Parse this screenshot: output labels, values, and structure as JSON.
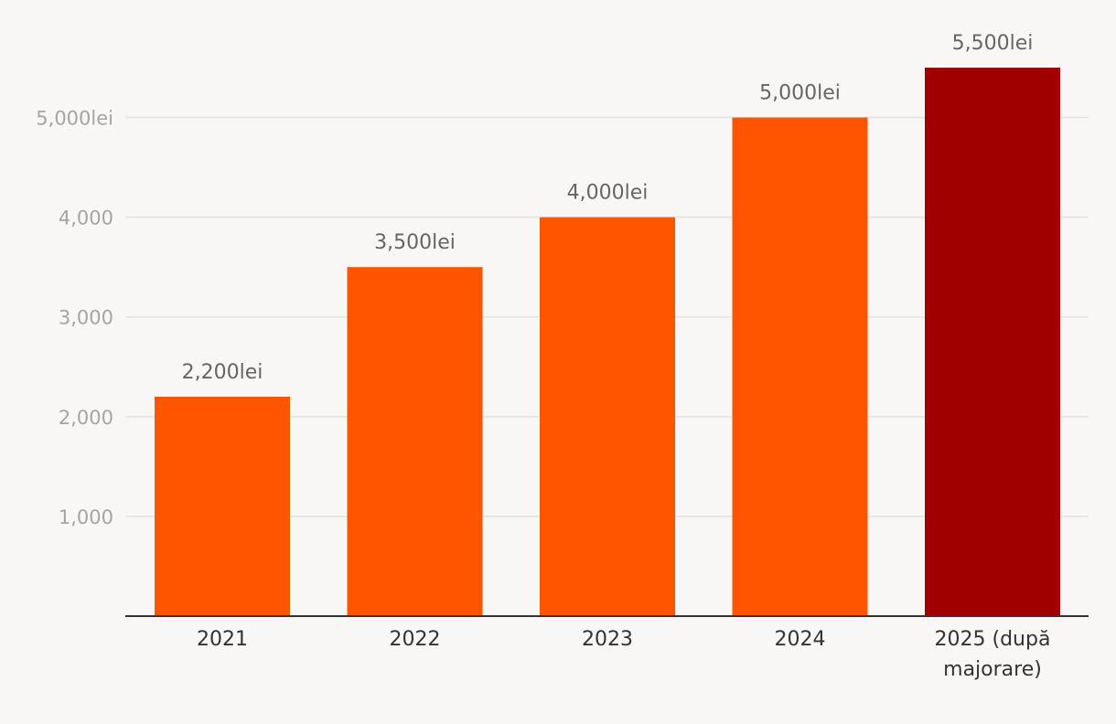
{
  "chart_data": {
    "type": "bar",
    "title": "",
    "xlabel": "",
    "ylabel": "",
    "ylim": [
      0,
      5500
    ],
    "yticks": [
      {
        "value": 1000,
        "label": "1,000"
      },
      {
        "value": 2000,
        "label": "2,000"
      },
      {
        "value": 3000,
        "label": "3,000"
      },
      {
        "value": 4000,
        "label": "4,000"
      },
      {
        "value": 5000,
        "label": "5,000lei"
      }
    ],
    "categories": [
      [
        "2021"
      ],
      [
        "2022"
      ],
      [
        "2023"
      ],
      [
        "2024"
      ],
      [
        "2025 (după",
        "majorare)"
      ]
    ],
    "values": [
      2200,
      3500,
      4000,
      5000,
      5500
    ],
    "data_labels": [
      "2,200lei",
      "3,500lei",
      "4,000lei",
      "5,000lei",
      "5,500lei"
    ],
    "colors": [
      "#ff5500",
      "#ff5500",
      "#ff5500",
      "#ff5500",
      "#a00000"
    ],
    "grid": true,
    "gridColor": "#e2e2e2",
    "axisColor": "#333333"
  }
}
